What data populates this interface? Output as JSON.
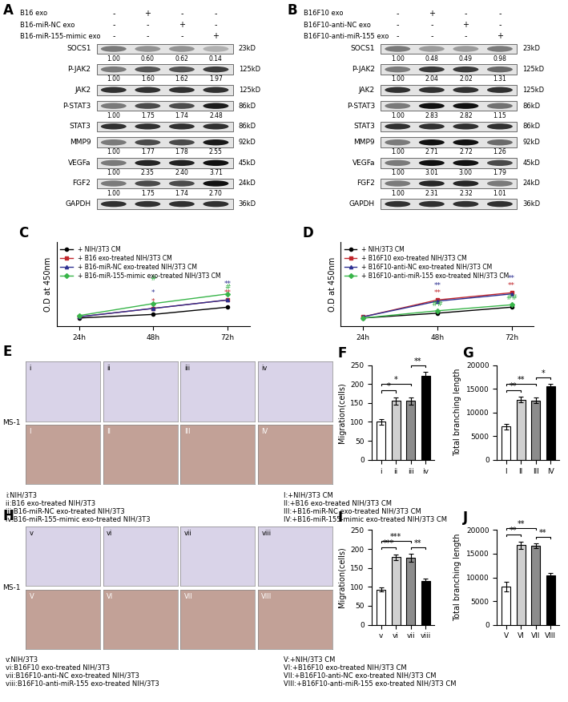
{
  "blots": [
    {
      "panel": "A",
      "conditions": [
        {
          "name": "B16 exo",
          "signs": [
            "-",
            "+",
            "-",
            "-"
          ]
        },
        {
          "name": "B16-miR-NC exo",
          "signs": [
            "-",
            "-",
            "+",
            "-"
          ]
        },
        {
          "name": "B16-miR-155-mimic exo",
          "signs": [
            "-",
            "-",
            "-",
            "+"
          ]
        }
      ],
      "bands": [
        {
          "protein": "SOCS1",
          "size": "23kD",
          "values": [
            1.0,
            0.6,
            0.62,
            0.14
          ],
          "value_labels": [
            "1.00",
            "0.60",
            "0.62",
            "0.14"
          ]
        },
        {
          "protein": "P-JAK2",
          "size": "125kD",
          "values": [
            1.0,
            1.6,
            1.62,
            1.97
          ],
          "value_labels": [
            "1.00",
            "1.60",
            "1.62",
            "1.97"
          ]
        },
        {
          "protein": "JAK2",
          "size": "125kD"
        },
        {
          "protein": "P-STAT3",
          "size": "86kD",
          "values": [
            1.0,
            1.75,
            1.74,
            2.48
          ],
          "value_labels": [
            "1.00",
            "1.75",
            "1.74",
            "2.48"
          ]
        },
        {
          "protein": "STAT3",
          "size": "86kD"
        },
        {
          "protein": "MMP9",
          "size": "92kD",
          "values": [
            1.0,
            1.77,
            1.78,
            2.55
          ],
          "value_labels": [
            "1.00",
            "1.77",
            "1.78",
            "2.55"
          ]
        },
        {
          "protein": "VEGFa",
          "size": "45kD",
          "values": [
            1.0,
            2.35,
            2.4,
            3.71
          ],
          "value_labels": [
            "1.00",
            "2.35",
            "2.40",
            "3.71"
          ]
        },
        {
          "protein": "FGF2",
          "size": "24kD",
          "values": [
            1.0,
            1.75,
            1.74,
            2.7
          ],
          "value_labels": [
            "1.00",
            "1.75",
            "1.74",
            "2.70"
          ]
        },
        {
          "protein": "GAPDH",
          "size": "36kD"
        }
      ]
    },
    {
      "panel": "B",
      "conditions": [
        {
          "name": "B16F10 exo",
          "signs": [
            "-",
            "+",
            "-",
            "-"
          ]
        },
        {
          "name": "B16F10-anti-NC exo",
          "signs": [
            "-",
            "-",
            "+",
            "-"
          ]
        },
        {
          "name": "B16F10-anti-miR-155 exo",
          "signs": [
            "-",
            "-",
            "-",
            "+"
          ]
        }
      ],
      "bands": [
        {
          "protein": "SOCS1",
          "size": "23kD",
          "values": [
            1.0,
            0.48,
            0.49,
            0.98
          ],
          "value_labels": [
            "1.00",
            "0.48",
            "0.49",
            "0.98"
          ]
        },
        {
          "protein": "P-JAK2",
          "size": "125kD",
          "values": [
            1.0,
            2.04,
            2.02,
            1.31
          ],
          "value_labels": [
            "1.00",
            "2.04",
            "2.02",
            "1.31"
          ]
        },
        {
          "protein": "JAK2",
          "size": "125kD"
        },
        {
          "protein": "P-STAT3",
          "size": "86kD",
          "values": [
            1.0,
            2.83,
            2.82,
            1.15
          ],
          "value_labels": [
            "1.00",
            "2.83",
            "2.82",
            "1.15"
          ]
        },
        {
          "protein": "STAT3",
          "size": "86kD"
        },
        {
          "protein": "MMP9",
          "size": "92kD",
          "values": [
            1.0,
            2.71,
            2.72,
            1.26
          ],
          "value_labels": [
            "1.00",
            "2.71",
            "2.72",
            "1.26"
          ]
        },
        {
          "protein": "VEGFa",
          "size": "45kD",
          "values": [
            1.0,
            3.01,
            3.0,
            1.79
          ],
          "value_labels": [
            "1.00",
            "3.01",
            "3.00",
            "1.79"
          ]
        },
        {
          "protein": "FGF2",
          "size": "24kD",
          "values": [
            1.0,
            2.31,
            2.32,
            1.01
          ],
          "value_labels": [
            "1.00",
            "2.31",
            "2.32",
            "1.01"
          ]
        },
        {
          "protein": "GAPDH",
          "size": "36kD"
        }
      ]
    }
  ],
  "chart_data": [
    {
      "panel": "C",
      "type": "line",
      "y_label": "O.D at 450nm",
      "categories": [
        "24h",
        "48h",
        "72h"
      ],
      "ylim": [
        0.05,
        0.75
      ],
      "tick_labels": "x",
      "legend": "upper left",
      "series": [
        {
          "name": "+ NIH/3T3 CM",
          "color": "#000000",
          "marker": "circle",
          "values": [
            0.12,
            0.15,
            0.21
          ]
        },
        {
          "name": "+ B16 exo-treated NIH/3T3 CM",
          "color": "#c1272d",
          "marker": "square",
          "values": [
            0.13,
            0.2,
            0.27
          ],
          "significance": [
            null,
            "*",
            "**"
          ]
        },
        {
          "name": "+ B16-miR-NC exo-treated NIH/3T3 CM",
          "color": "#2e3192",
          "marker": "triangle",
          "values": [
            0.13,
            0.2,
            0.27
          ],
          "significance": [
            null,
            "*",
            "**"
          ]
        },
        {
          "name": "+ B16-miR-155-mimic exo-treated NIH/3T3 CM",
          "color": "#39b54a",
          "marker": "diamond",
          "values": [
            0.14,
            0.24,
            0.32
          ],
          "significance": [
            null,
            "#",
            "#"
          ]
        }
      ]
    },
    {
      "panel": "D",
      "type": "line",
      "y_label": "O.D at 450nm",
      "categories": [
        "24h",
        "48h",
        "72h"
      ],
      "ylim": [
        0.05,
        0.75
      ],
      "tick_labels": "x",
      "legend": "upper left",
      "series": [
        {
          "name": "+ NIH/3T3 CM",
          "color": "#000000",
          "marker": "circle",
          "values": [
            0.12,
            0.16,
            0.21
          ]
        },
        {
          "name": "+ B16F10 exo-treated NIH/3T3 CM",
          "color": "#c1272d",
          "marker": "square",
          "values": [
            0.13,
            0.27,
            0.33
          ],
          "significance": [
            null,
            "**",
            "**"
          ]
        },
        {
          "name": "+ B16F10-anti-NC exo-treated NIH/3T3 CM",
          "color": "#2e3192",
          "marker": "triangle",
          "values": [
            0.13,
            0.26,
            0.32
          ],
          "significance": [
            null,
            "**",
            "**"
          ]
        },
        {
          "name": "+ B16F10-anti-miR-155 exo-treated NIH/3T3 CM",
          "color": "#39b54a",
          "marker": "diamond",
          "values": [
            0.12,
            0.18,
            0.23
          ],
          "significance": [
            null,
            "##",
            "##"
          ]
        }
      ]
    },
    {
      "panel": "F",
      "type": "bar",
      "y_label": "Migration(cells)",
      "categories": [
        "i",
        "ii",
        "iii",
        "iv"
      ],
      "values": [
        100,
        155,
        155,
        222
      ],
      "errors": [
        8,
        10,
        10,
        10
      ],
      "colors": [
        "#ffffff",
        "#d0d0d0",
        "#8c8c8c",
        "#000000"
      ],
      "ylim": [
        0,
        250
      ],
      "yticks": [
        0,
        50,
        100,
        150,
        200,
        250
      ],
      "comparisons": [
        {
          "pair": [
            "i",
            "ii"
          ],
          "label": "*"
        },
        {
          "pair": [
            "i",
            "iii"
          ],
          "label": "*"
        },
        {
          "pair": [
            "iii",
            "iv"
          ],
          "label": "**"
        }
      ]
    },
    {
      "panel": "G",
      "type": "bar",
      "y_label": "Total branching length",
      "categories": [
        "I",
        "II",
        "III",
        "IV"
      ],
      "values": [
        7000,
        12700,
        12500,
        15500
      ],
      "errors": [
        600,
        600,
        600,
        500
      ],
      "colors": [
        "#ffffff",
        "#d0d0d0",
        "#8c8c8c",
        "#000000"
      ],
      "ylim": [
        0,
        20000
      ],
      "yticks": [
        0,
        5000,
        10000,
        15000,
        20000
      ],
      "comparisons": [
        {
          "pair": [
            "I",
            "II"
          ],
          "label": "**"
        },
        {
          "pair": [
            "I",
            "III"
          ],
          "label": "**"
        },
        {
          "pair": [
            "III",
            "IV"
          ],
          "label": "*"
        }
      ]
    },
    {
      "panel": "I",
      "type": "bar",
      "y_label": "Migration(cells)",
      "categories": [
        "v",
        "vi",
        "vii",
        "viii"
      ],
      "values": [
        93,
        178,
        177,
        115
      ],
      "errors": [
        5,
        8,
        10,
        6
      ],
      "colors": [
        "#ffffff",
        "#d0d0d0",
        "#8c8c8c",
        "#000000"
      ],
      "ylim": [
        0,
        250
      ],
      "yticks": [
        0,
        50,
        100,
        150,
        200,
        250
      ],
      "comparisons": [
        {
          "pair": [
            "v",
            "vi"
          ],
          "label": "***"
        },
        {
          "pair": [
            "v",
            "vii"
          ],
          "label": "***"
        },
        {
          "pair": [
            "vii",
            "viii"
          ],
          "label": "**"
        }
      ]
    },
    {
      "panel": "J",
      "type": "bar",
      "y_label": "Total branching length",
      "categories": [
        "V",
        "VI",
        "VII",
        "VIII"
      ],
      "values": [
        8000,
        16800,
        16700,
        10500
      ],
      "errors": [
        1000,
        800,
        500,
        500
      ],
      "colors": [
        "#ffffff",
        "#d0d0d0",
        "#8c8c8c",
        "#000000"
      ],
      "ylim": [
        0,
        20000
      ],
      "yticks": [
        0,
        5000,
        10000,
        15000,
        20000
      ],
      "comparisons": [
        {
          "pair": [
            "V",
            "VI"
          ],
          "label": "**"
        },
        {
          "pair": [
            "V",
            "VII"
          ],
          "label": "**"
        },
        {
          "pair": [
            "VII",
            "VIII"
          ],
          "label": "**"
        }
      ]
    }
  ],
  "images": [
    {
      "panel": "E",
      "cell_line": "MS-1",
      "top_labels": [
        "i",
        "ii",
        "iii",
        "iv"
      ],
      "bottom_labels": [
        "I",
        "II",
        "III",
        "IV"
      ],
      "captions_top": [
        "i:NIH/3T3",
        "ii:B16 exo-treated NIH/3T3",
        "iii:B16-miR-NC exo-treated NIH/3T3",
        "iv:B16-miR-155-mimic exo-treated NIH/3T3"
      ],
      "captions_bottom": [
        "I:+NIH/3T3 CM",
        "II:+B16 exo-treated NIH/3T3 CM",
        "III:+B16-miR-NC exo-treated NIH/3T3 CM",
        "IV:+B16-miR-155-mimic exo-treated NIH/3T3 CM"
      ]
    },
    {
      "panel": "H",
      "cell_line": "MS-1",
      "top_labels": [
        "v",
        "vi",
        "vii",
        "viii"
      ],
      "bottom_labels": [
        "V",
        "VI",
        "VII",
        "VIII"
      ],
      "captions_top": [
        "v:NIH/3T3",
        "vi:B16F10 exo-treated NIH/3T3",
        "vii:B16F10-anti-NC exo-treated NIH/3T3",
        "viii:B16F10-anti-miR-155 exo-treated NIH/3T3"
      ],
      "captions_bottom": [
        "V:+NIH/3T3 CM",
        "VI:+B16F10 exo-treated NIH/3T3 CM",
        "VII:+B16F10-anti-NC exo-treated NIH/3T3 CM",
        "VIII:+B16F10-anti-miR-155 exo-treated NIH/3T3 CM"
      ]
    }
  ]
}
